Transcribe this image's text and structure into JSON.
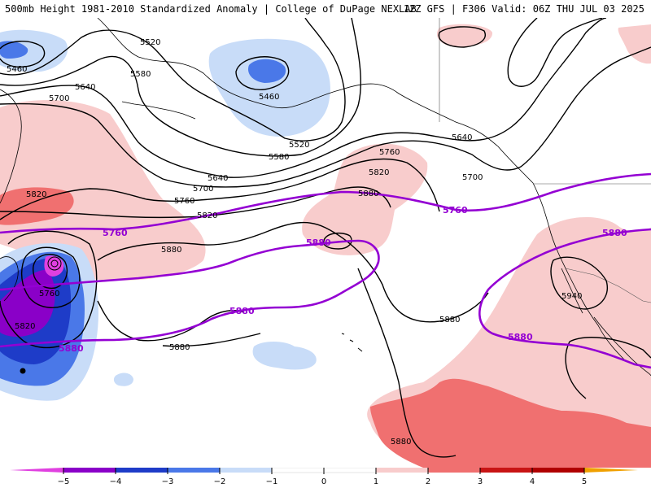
{
  "header": {
    "title": "500mb Height 1981-2010 Standardized Anomaly | College of DuPage NEXLAB",
    "run_info": "12Z GFS | F306 Valid: 06Z THU JUL 03 2025"
  },
  "colors": {
    "anom_neg5": "#e040e0",
    "anom_neg4": "#8a00c8",
    "anom_neg3": "#1e3cc8",
    "anom_neg2": "#4a78e8",
    "anom_neg1": "#c8dcf8",
    "anom_pos1": "#f8cccc",
    "anom_pos2": "#f07070",
    "anom_pos3": "#c81414",
    "anom_pos4": "#b00000",
    "anom_pos5": "#f0a000",
    "height_contour": "#000000",
    "highlight_contour": "#9400d3",
    "coastline": "#000000"
  },
  "legend": {
    "tick_labels": [
      "−5",
      "−4",
      "−3",
      "−2",
      "−1",
      "0",
      "1",
      "2",
      "3",
      "4",
      "5"
    ]
  },
  "contour_labels": {
    "c5460_a": "5460",
    "c5460_b": "5460",
    "c5520_a": "5520",
    "c5520_b": "5520",
    "c5580_a": "5580",
    "c5580_b": "5580",
    "c5640_a": "5640",
    "c5640_b": "5640",
    "c5640_c": "5640",
    "c5700_a": "5700",
    "c5700_b": "5700",
    "c5700_c": "5700",
    "c5760_a": "5760",
    "c5760_b": "5760",
    "c5760_c": "5760",
    "c5820_a": "5820",
    "c5820_b": "5820",
    "c5820_c": "5820",
    "c5820_d": "5820",
    "c5880_a": "5880",
    "c5880_b": "5880",
    "c5880_c": "5880",
    "c5880_d": "5880",
    "c5880_e": "5880",
    "c5940": "5940"
  },
  "highlight_labels": {
    "p5760_a": "5760",
    "p5760_b": "5760",
    "p5880_a": "5880",
    "p5880_b": "5880",
    "p5880_c": "5880",
    "p5880_d": "5880",
    "p5880_e": "5880"
  }
}
